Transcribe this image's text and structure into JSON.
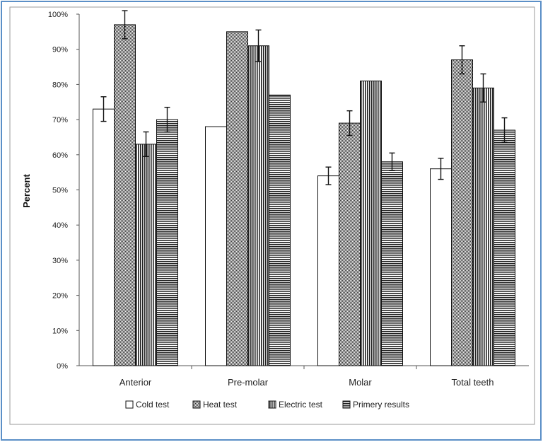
{
  "chart_data": {
    "type": "bar",
    "title": "",
    "xlabel": "",
    "ylabel": "Percent",
    "ylim": [
      0,
      100
    ],
    "yticks": [
      "0%",
      "10%",
      "20%",
      "30%",
      "40%",
      "50%",
      "60%",
      "70%",
      "80%",
      "90%",
      "100%"
    ],
    "categories": [
      "Anterior",
      "Pre-molar",
      "Molar",
      "Total teeth"
    ],
    "series": [
      {
        "name": "Cold test",
        "values": [
          73,
          68,
          54,
          56
        ],
        "errors": [
          3.5,
          null,
          2.5,
          3
        ],
        "pattern": "blank"
      },
      {
        "name": "Heat test",
        "values": [
          97,
          95,
          69,
          87
        ],
        "errors": [
          4,
          null,
          3.5,
          4
        ],
        "pattern": "checker"
      },
      {
        "name": "Electric test",
        "values": [
          63,
          91,
          81,
          79
        ],
        "errors": [
          3.5,
          4.5,
          null,
          4
        ],
        "pattern": "vlines"
      },
      {
        "name": "Primery results",
        "values": [
          70,
          77,
          58,
          67
        ],
        "errors": [
          3.5,
          null,
          2.5,
          3.5
        ],
        "pattern": "hlines"
      }
    ],
    "legend_position": "bottom",
    "grid": false
  }
}
